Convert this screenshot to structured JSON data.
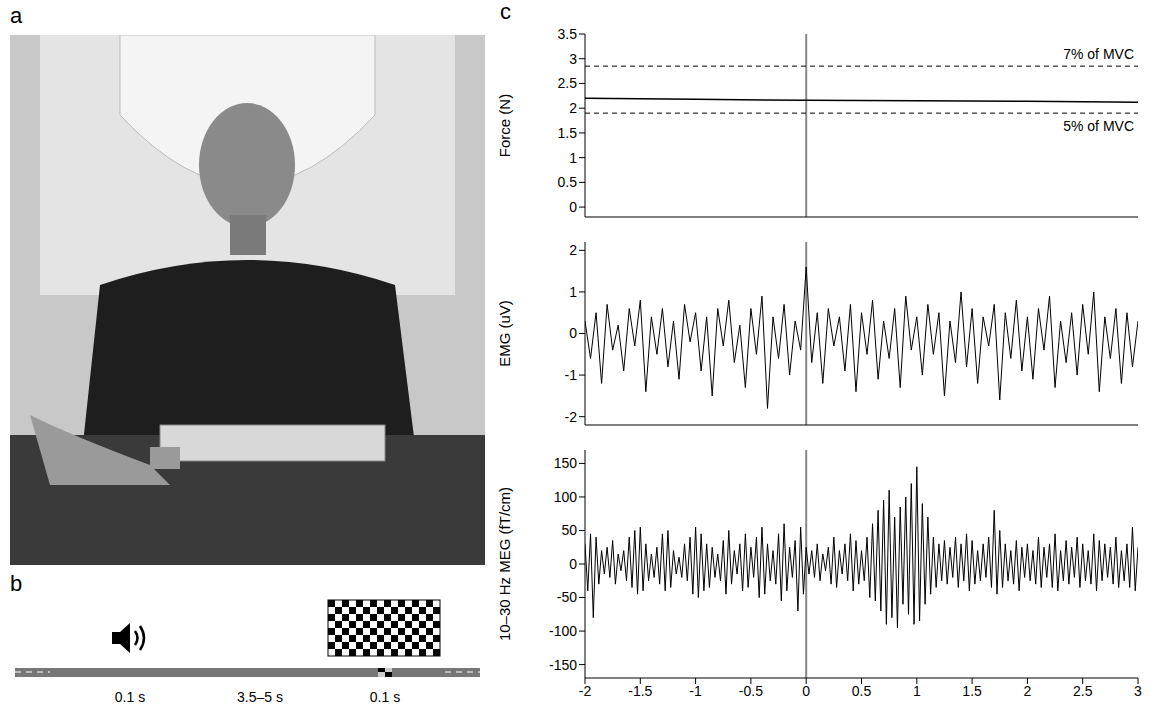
{
  "panel_labels": [
    "a",
    "b",
    "c"
  ],
  "timeline_labels": [
    "0.1 s",
    "3.5–5 s",
    "0.1 s"
  ],
  "chart_data": [
    {
      "type": "line",
      "ylabel": "Force (N)",
      "color": "#000000",
      "x": [
        -2,
        -1,
        0,
        1,
        2,
        3
      ],
      "values": [
        2.2,
        2.18,
        2.16,
        2.15,
        2.14,
        2.12
      ],
      "xlim": [
        -2,
        3
      ],
      "xticks": [
        -2,
        -1.5,
        -1,
        -0.5,
        0,
        0.5,
        1,
        1.5,
        2,
        2.5,
        3
      ],
      "ylim": [
        -0.2,
        3.5
      ],
      "yticks": [
        0,
        0.5,
        1,
        1.5,
        2,
        2.5,
        3,
        3.5
      ],
      "tick_labels": "y",
      "reference_x": 0,
      "reference_lines": [
        {
          "y": 2.85,
          "label": "7% of MVC",
          "line_style": "dashed"
        },
        {
          "y": 1.9,
          "label": "5% of MVC",
          "line_style": "dashed"
        }
      ]
    },
    {
      "type": "line",
      "ylabel": "EMG (uV)",
      "color": "#000000",
      "x": [
        -2,
        -1.95,
        -1.9,
        -1.85,
        -1.8,
        -1.75,
        -1.7,
        -1.65,
        -1.6,
        -1.55,
        -1.5,
        -1.45,
        -1.4,
        -1.35,
        -1.3,
        -1.25,
        -1.2,
        -1.15,
        -1.1,
        -1.05,
        -1,
        -0.95,
        -0.9,
        -0.85,
        -0.8,
        -0.75,
        -0.7,
        -0.65,
        -0.6,
        -0.55,
        -0.5,
        -0.45,
        -0.4,
        -0.35,
        -0.3,
        -0.25,
        -0.2,
        -0.15,
        -0.1,
        -0.05,
        0,
        0.05,
        0.1,
        0.15,
        0.2,
        0.25,
        0.3,
        0.35,
        0.4,
        0.45,
        0.5,
        0.55,
        0.6,
        0.65,
        0.7,
        0.75,
        0.8,
        0.85,
        0.9,
        0.95,
        1,
        1.05,
        1.1,
        1.15,
        1.2,
        1.25,
        1.3,
        1.35,
        1.4,
        1.45,
        1.5,
        1.55,
        1.6,
        1.65,
        1.7,
        1.75,
        1.8,
        1.85,
        1.9,
        1.95,
        2,
        2.05,
        2.1,
        2.15,
        2.2,
        2.25,
        2.3,
        2.35,
        2.4,
        2.45,
        2.5,
        2.55,
        2.6,
        2.65,
        2.7,
        2.75,
        2.8,
        2.85,
        2.9,
        2.95,
        3
      ],
      "values": [
        0.3,
        -0.6,
        0.5,
        -1.2,
        0.7,
        -0.4,
        0.2,
        -0.9,
        0.6,
        -0.3,
        0.8,
        -1.4,
        0.4,
        -0.5,
        0.6,
        -0.8,
        0.3,
        -1.1,
        0.7,
        -0.2,
        0.5,
        -0.9,
        0.4,
        -1.5,
        0.6,
        -0.3,
        0.8,
        -0.7,
        0.2,
        -1.3,
        0.6,
        -0.5,
        0.9,
        -1.8,
        0.4,
        -0.6,
        0.7,
        -1.0,
        0.3,
        -0.4,
        1.6,
        -0.7,
        0.5,
        -1.2,
        0.6,
        -0.3,
        0.4,
        -0.9,
        0.7,
        -1.4,
        0.5,
        -0.5,
        0.8,
        -1.1,
        0.3,
        -0.6,
        0.6,
        -1.3,
        0.9,
        -0.4,
        0.4,
        -1.0,
        0.7,
        -0.5,
        0.5,
        -1.5,
        0.3,
        -0.7,
        1.0,
        -0.8,
        0.6,
        -1.2,
        0.4,
        -0.3,
        0.7,
        -1.6,
        0.5,
        -0.6,
        0.8,
        -0.9,
        0.4,
        -1.1,
        0.6,
        -0.4,
        0.9,
        -1.3,
        0.3,
        -0.7,
        0.5,
        -1.0,
        0.7,
        -0.5,
        1.0,
        -1.4,
        0.4,
        -0.6,
        0.6,
        -1.2,
        0.5,
        -0.8,
        0.3
      ],
      "xlim": [
        -2,
        3
      ],
      "xticks": [
        -2,
        -1.5,
        -1,
        -0.5,
        0,
        0.5,
        1,
        1.5,
        2,
        2.5,
        3
      ],
      "ylim": [
        -2.2,
        2.2
      ],
      "yticks": [
        -2,
        -1,
        0,
        1,
        2
      ],
      "tick_labels": "y",
      "reference_x": 0
    },
    {
      "type": "line",
      "ylabel": "10–30 Hz MEG (fT/cm)",
      "color": "#000000",
      "x": [
        -2,
        -1.975,
        -1.95,
        -1.925,
        -1.9,
        -1.875,
        -1.85,
        -1.825,
        -1.8,
        -1.775,
        -1.75,
        -1.725,
        -1.7,
        -1.675,
        -1.65,
        -1.625,
        -1.6,
        -1.575,
        -1.55,
        -1.525,
        -1.5,
        -1.475,
        -1.45,
        -1.425,
        -1.4,
        -1.375,
        -1.35,
        -1.325,
        -1.3,
        -1.275,
        -1.25,
        -1.225,
        -1.2,
        -1.175,
        -1.15,
        -1.125,
        -1.1,
        -1.075,
        -1.05,
        -1.025,
        -1,
        -0.975,
        -0.95,
        -0.925,
        -0.9,
        -0.875,
        -0.85,
        -0.825,
        -0.8,
        -0.775,
        -0.75,
        -0.725,
        -0.7,
        -0.675,
        -0.65,
        -0.625,
        -0.6,
        -0.575,
        -0.55,
        -0.525,
        -0.5,
        -0.475,
        -0.45,
        -0.425,
        -0.4,
        -0.375,
        -0.35,
        -0.325,
        -0.3,
        -0.275,
        -0.25,
        -0.225,
        -0.2,
        -0.175,
        -0.15,
        -0.125,
        -0.1,
        -0.075,
        -0.05,
        -0.025,
        0,
        0.025,
        0.05,
        0.075,
        0.1,
        0.125,
        0.15,
        0.175,
        0.2,
        0.225,
        0.25,
        0.275,
        0.3,
        0.325,
        0.35,
        0.375,
        0.4,
        0.425,
        0.45,
        0.475,
        0.5,
        0.525,
        0.55,
        0.575,
        0.6,
        0.625,
        0.65,
        0.675,
        0.7,
        0.725,
        0.75,
        0.775,
        0.8,
        0.825,
        0.85,
        0.875,
        0.9,
        0.925,
        0.95,
        0.975,
        1,
        1.025,
        1.05,
        1.075,
        1.1,
        1.125,
        1.15,
        1.175,
        1.2,
        1.225,
        1.25,
        1.275,
        1.3,
        1.325,
        1.35,
        1.375,
        1.4,
        1.425,
        1.45,
        1.475,
        1.5,
        1.525,
        1.55,
        1.575,
        1.6,
        1.625,
        1.65,
        1.675,
        1.7,
        1.725,
        1.75,
        1.775,
        1.8,
        1.825,
        1.85,
        1.875,
        1.9,
        1.925,
        1.95,
        1.975,
        2,
        2.025,
        2.05,
        2.075,
        2.1,
        2.125,
        2.15,
        2.175,
        2.2,
        2.225,
        2.25,
        2.275,
        2.3,
        2.325,
        2.35,
        2.375,
        2.4,
        2.425,
        2.45,
        2.475,
        2.5,
        2.525,
        2.55,
        2.575,
        2.6,
        2.625,
        2.65,
        2.675,
        2.7,
        2.725,
        2.75,
        2.775,
        2.8,
        2.825,
        2.85,
        2.875,
        2.9,
        2.925,
        2.95,
        2.975,
        3
      ],
      "values": [
        30,
        -40,
        45,
        -80,
        40,
        -30,
        20,
        -15,
        25,
        -20,
        35,
        -30,
        15,
        -10,
        20,
        -25,
        40,
        -35,
        50,
        -45,
        55,
        -40,
        30,
        -25,
        15,
        -20,
        25,
        -30,
        45,
        -40,
        50,
        -35,
        20,
        -15,
        10,
        -20,
        30,
        -25,
        40,
        -45,
        55,
        -50,
        45,
        -40,
        30,
        -35,
        25,
        -20,
        15,
        -25,
        35,
        -45,
        50,
        -30,
        20,
        -15,
        30,
        -40,
        45,
        -35,
        25,
        -20,
        40,
        -50,
        55,
        -45,
        30,
        -25,
        20,
        -30,
        45,
        -55,
        60,
        -40,
        25,
        -20,
        35,
        -70,
        55,
        -45,
        25,
        -15,
        20,
        -20,
        30,
        -25,
        15,
        -10,
        25,
        -30,
        40,
        -35,
        20,
        -15,
        30,
        -25,
        45,
        -40,
        35,
        -30,
        20,
        -25,
        40,
        -50,
        60,
        -55,
        80,
        -70,
        95,
        -90,
        110,
        -80,
        70,
        -95,
        85,
        -60,
        100,
        -75,
        120,
        -90,
        145,
        -85,
        90,
        -60,
        70,
        -45,
        40,
        -35,
        30,
        -25,
        35,
        -30,
        25,
        -20,
        40,
        -35,
        30,
        -25,
        45,
        -40,
        35,
        -30,
        20,
        -25,
        30,
        -20,
        40,
        -35,
        80,
        -45,
        50,
        -35,
        30,
        -25,
        20,
        -30,
        35,
        -40,
        25,
        -20,
        30,
        -25,
        20,
        -30,
        40,
        -35,
        25,
        -20,
        30,
        -35,
        45,
        -40,
        20,
        -25,
        35,
        -30,
        25,
        -20,
        40,
        -35,
        30,
        -25,
        20,
        -30,
        45,
        -40,
        35,
        -25,
        30,
        -20,
        25,
        -30,
        40,
        -35,
        20,
        -25,
        30,
        -35,
        55,
        -40,
        25
      ],
      "xlim": [
        -2,
        3
      ],
      "xticks": [
        -2,
        -1.5,
        -1,
        -0.5,
        0,
        0.5,
        1,
        1.5,
        2,
        2.5,
        3
      ],
      "ylim": [
        -170,
        170
      ],
      "yticks": [
        -150,
        -100,
        -50,
        0,
        50,
        100,
        150
      ],
      "reference_x": 0
    }
  ]
}
